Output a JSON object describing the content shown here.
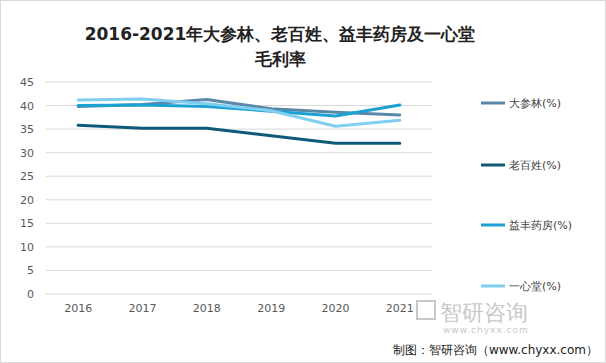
{
  "chart_data": {
    "type": "line",
    "title": "2016-2021年大参林、老百姓、益丰药房及一心堂\n毛利率",
    "categories": [
      "2016",
      "2017",
      "2018",
      "2019",
      "2020",
      "2021"
    ],
    "series": [
      {
        "name": "大参林(%)",
        "color": "#5a88a8",
        "values": [
          39.8,
          40.2,
          41.3,
          39.3,
          38.6,
          38.0
        ]
      },
      {
        "name": "老百姓(%)",
        "color": "#0d5a78",
        "values": [
          35.8,
          35.2,
          35.2,
          33.6,
          32.0,
          32.0
        ]
      },
      {
        "name": "益丰药房(%)",
        "color": "#1ba1d2",
        "values": [
          40.0,
          40.1,
          39.8,
          38.8,
          37.8,
          40.1
        ]
      },
      {
        "name": "一心堂(%)",
        "color": "#80cff0",
        "values": [
          41.2,
          41.4,
          40.4,
          38.9,
          35.6,
          36.9
        ]
      }
    ],
    "ylim": [
      0,
      45
    ],
    "yticks": [
      0,
      5,
      10,
      15,
      20,
      25,
      30,
      35,
      40,
      45
    ],
    "grid": true,
    "legend": "right",
    "annotations": [
      "智研咨询",
      "www.chyxx.com",
      "制图：智研咨询（www.chyxx.com）"
    ]
  }
}
